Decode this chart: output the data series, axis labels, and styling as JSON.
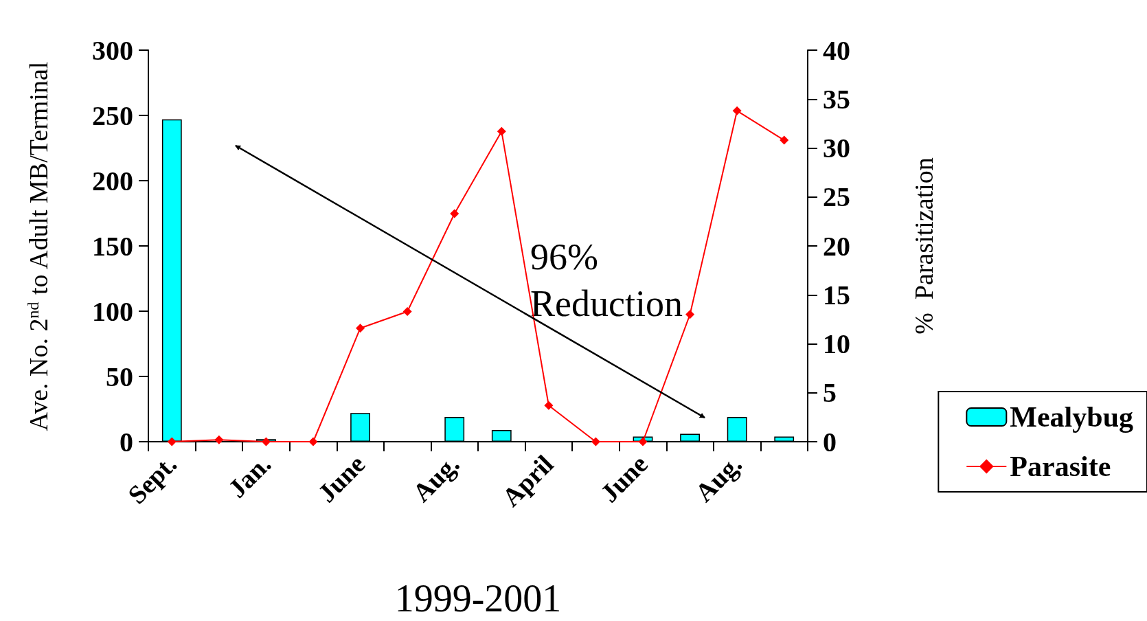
{
  "chart_data": {
    "type": "bar",
    "xlabel": "1999-2001",
    "ylabel": "Ave. No. 2$^{nd}$ to Adult MB/Terminal",
    "y2label": "%  Parasitization",
    "categories": [
      "Sept.",
      null,
      "Jan.",
      null,
      "June",
      null,
      "Aug.",
      null,
      "April",
      null,
      "June",
      null,
      "Aug.",
      null
    ],
    "series": [
      {
        "name": "Mealybug",
        "color": "#00ffff",
        "values": [
          247,
          0,
          2,
          0,
          22,
          0,
          19,
          9,
          0,
          0,
          4,
          6,
          19,
          4
        ]
      },
      {
        "name": "Parasite",
        "type": "line",
        "axis": "y2",
        "color": "#ff0000",
        "values": [
          0,
          0.2,
          0,
          0,
          11.6,
          13.3,
          23.3,
          31.7,
          3.7,
          0,
          0,
          13,
          33.8,
          30.8
        ]
      }
    ],
    "ylim": [
      0,
      300
    ],
    "yticks": [
      0,
      50,
      100,
      150,
      200,
      250,
      300
    ],
    "y2lim": [
      0,
      40
    ],
    "y2ticks": [
      0,
      5,
      10,
      15,
      20,
      25,
      30,
      35,
      40
    ],
    "marker": "diamond",
    "grid": false,
    "legend": "bottom right",
    "annotations": [
      "96% Reduction"
    ]
  }
}
